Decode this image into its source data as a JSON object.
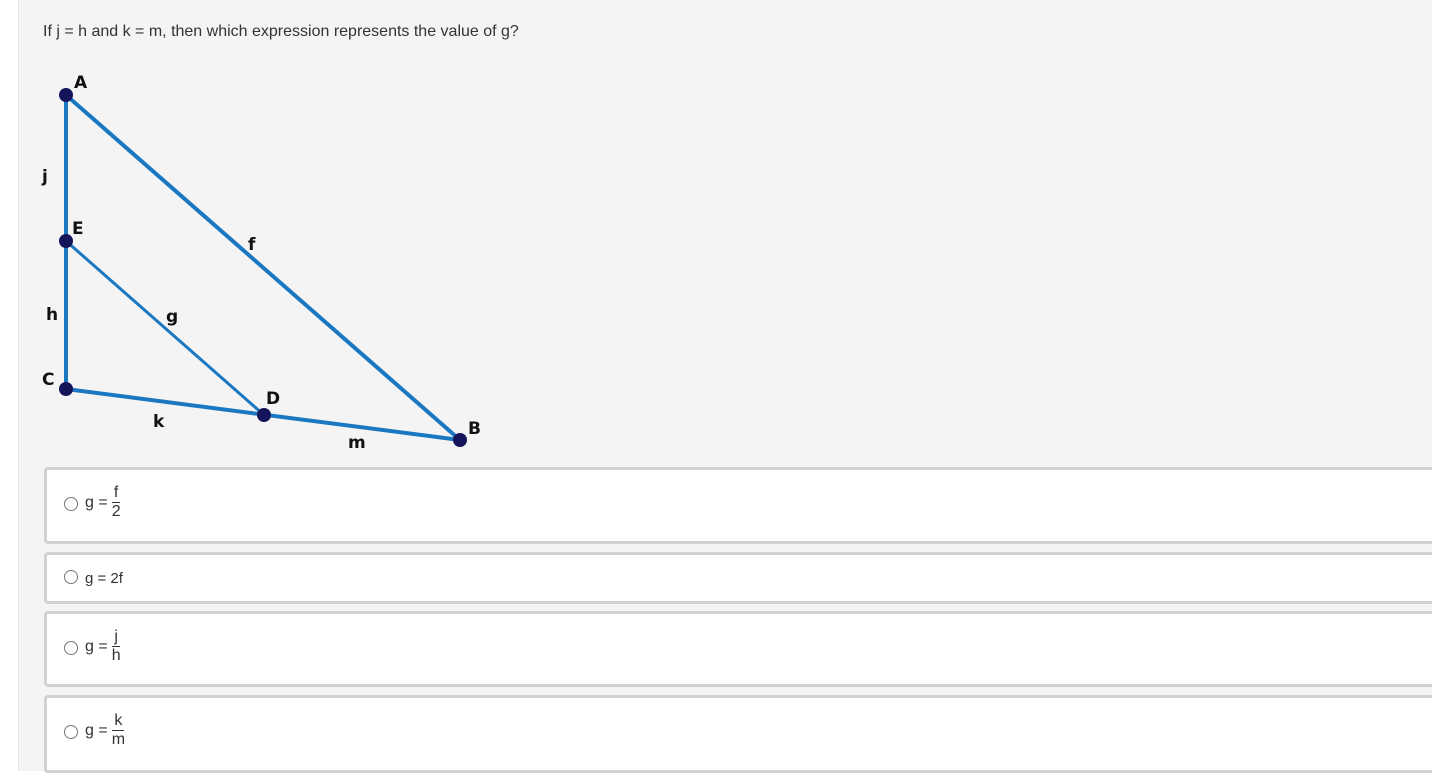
{
  "question": "If j = h and k = m, then which expression represents the value of g?",
  "figure": {
    "points": [
      "A",
      "E",
      "C",
      "D",
      "B"
    ],
    "segment_labels": [
      "j",
      "h",
      "f",
      "g",
      "k",
      "m"
    ],
    "line_color": "#1a78c2",
    "point_color": "#14145a"
  },
  "options": [
    {
      "lhs": "g =",
      "numerator": "f",
      "denominator": "2"
    },
    {
      "text": "g = 2f"
    },
    {
      "lhs": "g =",
      "numerator": "j",
      "denominator": "h"
    },
    {
      "lhs": "g =",
      "numerator": "k",
      "denominator": "m"
    }
  ]
}
